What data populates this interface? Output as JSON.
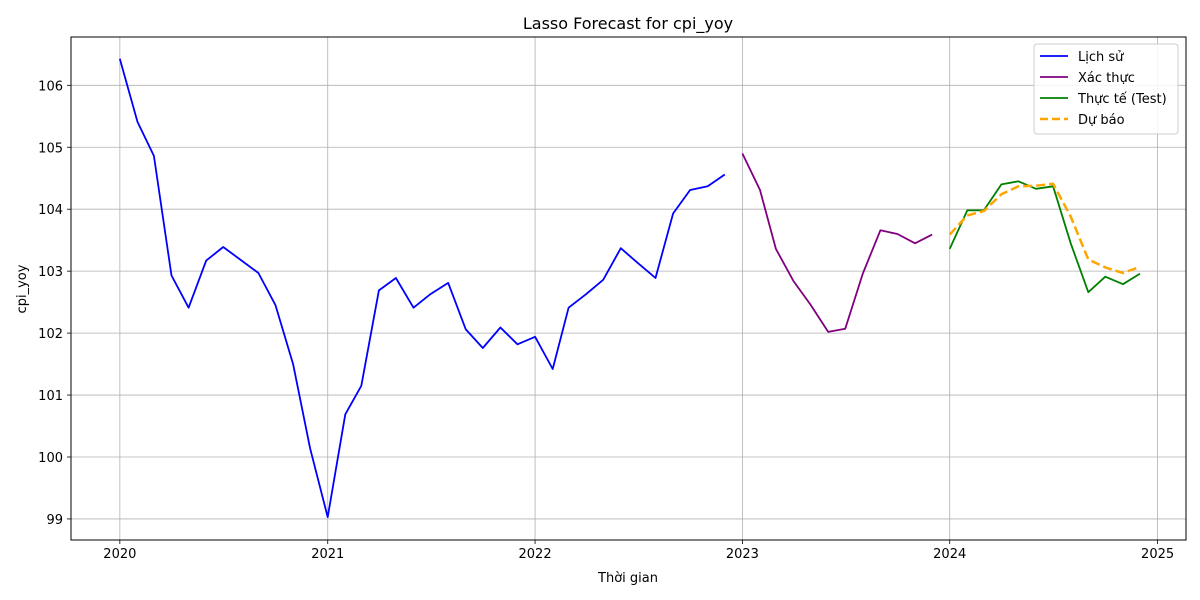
{
  "chart_data": {
    "type": "line",
    "title": "Lasso Forecast for cpi_yoy",
    "xlabel": "Thời gian",
    "ylabel": "cpi_yoy",
    "xlim": [
      "2019-10-07",
      "2025-02-20"
    ],
    "ylim": [
      98.66,
      106.78
    ],
    "x_ticks": [
      "2020",
      "2021",
      "2022",
      "2023",
      "2024",
      "2025"
    ],
    "y_ticks": [
      99,
      100,
      101,
      102,
      103,
      104,
      105,
      106
    ],
    "grid": true,
    "legend_position": "top-right",
    "series": [
      {
        "name": "Lịch sử",
        "color": "#0000ff",
        "style": "solid",
        "x": [
          "2020-01-01",
          "2020-02-01",
          "2020-03-01",
          "2020-04-01",
          "2020-05-01",
          "2020-06-01",
          "2020-07-01",
          "2020-08-01",
          "2020-09-01",
          "2020-10-01",
          "2020-11-01",
          "2020-12-01",
          "2021-01-01",
          "2021-02-01",
          "2021-03-01",
          "2021-04-01",
          "2021-05-01",
          "2021-06-01",
          "2021-07-01",
          "2021-08-01",
          "2021-09-01",
          "2021-10-01",
          "2021-11-01",
          "2021-12-01",
          "2022-01-01",
          "2022-02-01",
          "2022-03-01",
          "2022-04-01",
          "2022-05-01",
          "2022-06-01",
          "2022-07-01",
          "2022-08-01",
          "2022-09-01",
          "2022-10-01",
          "2022-11-01",
          "2022-12-01"
        ],
        "y": [
          106.43,
          105.41,
          104.86,
          102.93,
          102.41,
          103.17,
          103.39,
          103.18,
          102.97,
          102.45,
          101.5,
          100.14,
          99.03,
          100.69,
          101.15,
          102.69,
          102.89,
          102.41,
          102.63,
          102.81,
          102.06,
          101.76,
          102.09,
          101.82,
          101.94,
          101.42,
          102.41,
          102.63,
          102.86,
          103.37,
          103.13,
          102.89,
          103.93,
          104.31,
          104.37,
          104.56
        ]
      },
      {
        "name": "Xác thực",
        "color": "#800080",
        "style": "solid",
        "x": [
          "2023-01-01",
          "2023-02-01",
          "2023-03-01",
          "2023-04-01",
          "2023-05-01",
          "2023-06-01",
          "2023-07-01",
          "2023-08-01",
          "2023-09-01",
          "2023-10-01",
          "2023-11-01",
          "2023-12-01"
        ],
        "y": [
          104.9,
          104.31,
          103.36,
          102.84,
          102.46,
          102.02,
          102.07,
          102.96,
          103.66,
          103.6,
          103.45,
          103.59
        ]
      },
      {
        "name": "Thực tế (Test)",
        "color": "#008000",
        "style": "solid",
        "x": [
          "2024-01-01",
          "2024-02-01",
          "2024-03-01",
          "2024-04-01",
          "2024-05-01",
          "2024-06-01",
          "2024-07-01",
          "2024-08-01",
          "2024-09-01",
          "2024-10-01",
          "2024-11-01",
          "2024-12-01"
        ],
        "y": [
          103.36,
          103.98,
          103.98,
          104.4,
          104.45,
          104.33,
          104.37,
          103.45,
          102.66,
          102.91,
          102.79,
          102.96
        ]
      },
      {
        "name": "Dự báo",
        "color": "#ffa500",
        "style": "dashed",
        "x": [
          "2024-01-01",
          "2024-02-01",
          "2024-03-01",
          "2024-04-01",
          "2024-05-01",
          "2024-06-01",
          "2024-07-01",
          "2024-08-01",
          "2024-09-01",
          "2024-10-01",
          "2024-11-01",
          "2024-12-01"
        ],
        "y": [
          103.59,
          103.9,
          103.97,
          104.24,
          104.37,
          104.38,
          104.41,
          103.88,
          103.19,
          103.06,
          102.97,
          103.07
        ]
      }
    ]
  }
}
